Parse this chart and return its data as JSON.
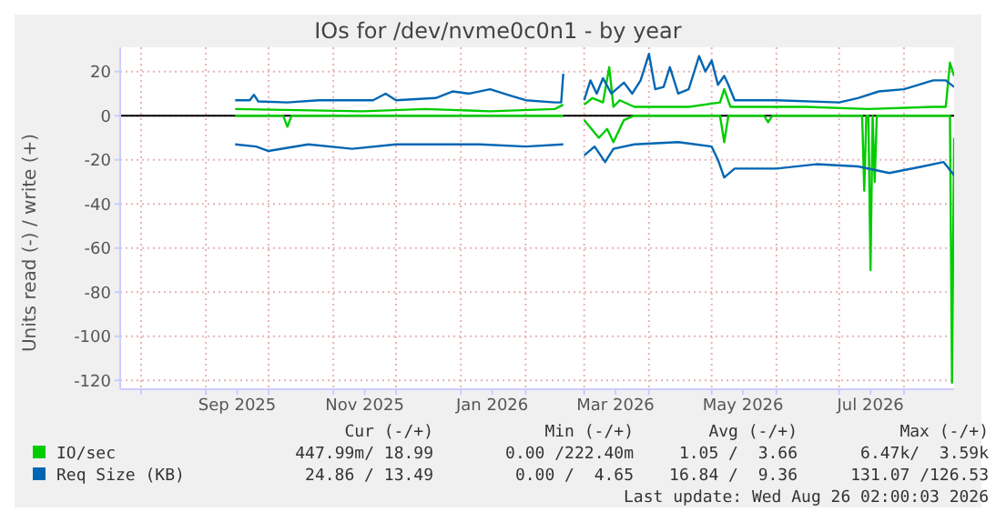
{
  "chart_data": {
    "type": "line",
    "title": "IOs for /dev/nvme0c0n1 - by year",
    "ylabel": "Units read (-) / write (+)",
    "xlim": [
      "2025-07-22",
      "2026-08-25"
    ],
    "xticks": [
      {
        "value": "2025-08-01",
        "label": null
      },
      {
        "value": "2025-09-01",
        "label": null
      },
      {
        "value": "2025-09-16",
        "label": "Sep 2025"
      },
      {
        "value": "2025-10-01",
        "label": null
      },
      {
        "value": "2025-11-01",
        "label": null
      },
      {
        "value": "2025-11-16",
        "label": "Nov 2025"
      },
      {
        "value": "2025-12-01",
        "label": null
      },
      {
        "value": "2026-01-01",
        "label": null
      },
      {
        "value": "2026-01-16",
        "label": "Jan 2026"
      },
      {
        "value": "2026-02-01",
        "label": null
      },
      {
        "value": "2026-03-01",
        "label": null
      },
      {
        "value": "2026-03-16",
        "label": "Mar 2026"
      },
      {
        "value": "2026-04-01",
        "label": null
      },
      {
        "value": "2026-05-01",
        "label": null
      },
      {
        "value": "2026-05-16",
        "label": "May 2026"
      },
      {
        "value": "2026-06-01",
        "label": null
      },
      {
        "value": "2026-07-01",
        "label": null
      },
      {
        "value": "2026-07-16",
        "label": "Jul 2026"
      },
      {
        "value": "2026-08-01",
        "label": null
      }
    ],
    "ylim": [
      -124,
      31
    ],
    "yticks": [
      -120,
      -100,
      -80,
      -60,
      -40,
      -20,
      0,
      20
    ],
    "grid": true,
    "legend": "bottom",
    "marker": "none",
    "line_style": "solid",
    "ref_lines": [
      {
        "axis": "y",
        "value": 0,
        "color": "#000000"
      }
    ],
    "series": [
      {
        "name": "IO/sec",
        "color": "#00cc00",
        "x": [
          "2025-09-15",
          "2025-10-15",
          "2025-11-15",
          "2025-12-15",
          "2026-01-15",
          "2026-02-15",
          "2026-02-19",
          "2026-02-20",
          "2026-03-01",
          "2026-03-05",
          "2026-03-10",
          "2026-03-13",
          "2026-03-15",
          "2026-03-18",
          "2026-03-25",
          "2026-04-20",
          "2026-05-05",
          "2026-05-07",
          "2026-05-10",
          "2026-06-15",
          "2026-07-15",
          "2026-08-15",
          "2026-08-21",
          "2026-08-23",
          "2026-08-25"
        ],
        "values": [
          3,
          2.5,
          2,
          3,
          2,
          3,
          5,
          null,
          5,
          8,
          6,
          22,
          4,
          7,
          4,
          4,
          6,
          12,
          4,
          4,
          3,
          4,
          4,
          24,
          18
        ]
      },
      {
        "color": "#00cc00",
        "x": [
          "2025-09-15",
          "2025-10-08",
          "2025-10-10",
          "2025-10-12",
          "2026-02-19",
          "2026-02-20",
          "2026-03-01",
          "2026-03-08",
          "2026-03-12",
          "2026-03-15",
          "2026-03-20",
          "2026-03-25",
          "2026-05-05",
          "2026-05-07",
          "2026-05-09",
          "2026-05-26",
          "2026-05-28",
          "2026-05-30",
          "2026-07-12",
          "2026-07-13",
          "2026-07-14",
          "2026-07-15",
          "2026-07-16",
          "2026-07-17",
          "2026-07-18",
          "2026-07-19",
          "2026-08-23",
          "2026-08-24",
          "2026-08-25"
        ],
        "values": [
          0,
          0,
          -5,
          0,
          0,
          null,
          -2,
          -10,
          -6,
          -12,
          -2,
          0,
          0,
          -12,
          0,
          0,
          -3,
          0,
          0,
          -34,
          0,
          0,
          -70,
          0,
          -30,
          0,
          0,
          -121,
          -10
        ]
      },
      {
        "name": "Req Size (KB)",
        "color": "#0066b3",
        "x": [
          "2025-09-15",
          "2025-09-22",
          "2025-09-24",
          "2025-09-26",
          "2025-10-10",
          "2025-10-25",
          "2025-11-20",
          "2025-11-26",
          "2025-12-01",
          "2025-12-20",
          "2025-12-28",
          "2026-01-05",
          "2026-01-15",
          "2026-01-25",
          "2026-02-01",
          "2026-02-15",
          "2026-02-18",
          "2026-02-19",
          "2026-02-20",
          "2026-03-01",
          "2026-03-04",
          "2026-03-07",
          "2026-03-10",
          "2026-03-14",
          "2026-03-20",
          "2026-03-24",
          "2026-03-28",
          "2026-04-01",
          "2026-04-04",
          "2026-04-08",
          "2026-04-11",
          "2026-04-15",
          "2026-04-20",
          "2026-04-25",
          "2026-04-28",
          "2026-05-01",
          "2026-05-04",
          "2026-05-07",
          "2026-05-09",
          "2026-05-12",
          "2026-06-01",
          "2026-07-01",
          "2026-07-10",
          "2026-07-20",
          "2026-08-01",
          "2026-08-15",
          "2026-08-21",
          "2026-08-25"
        ],
        "values": [
          7,
          7,
          9.5,
          6.5,
          6,
          7,
          7,
          10,
          7,
          8,
          11,
          10,
          12,
          9,
          7,
          6,
          6,
          19,
          null,
          7,
          16,
          10,
          17,
          10,
          15,
          10,
          16,
          28,
          12,
          13,
          22,
          10,
          12,
          27,
          20,
          25,
          14,
          18,
          14,
          7,
          7,
          6,
          8,
          11,
          12,
          16,
          16,
          13
        ]
      },
      {
        "color": "#0066b3",
        "x": [
          "2025-09-15",
          "2025-09-25",
          "2025-10-01",
          "2025-10-20",
          "2025-11-10",
          "2025-12-01",
          "2026-01-10",
          "2026-02-01",
          "2026-02-19",
          "2026-02-20",
          "2026-03-01",
          "2026-03-06",
          "2026-03-11",
          "2026-03-15",
          "2026-03-25",
          "2026-04-15",
          "2026-05-01",
          "2026-05-04",
          "2026-05-07",
          "2026-05-12",
          "2026-06-01",
          "2026-06-20",
          "2026-07-10",
          "2026-07-25",
          "2026-08-10",
          "2026-08-20",
          "2026-08-25"
        ],
        "values": [
          -13,
          -14,
          -16,
          -13,
          -15,
          -13,
          -13,
          -14,
          -13,
          null,
          -18,
          -14,
          -21,
          -15,
          -13,
          -12,
          -14,
          -20,
          -28,
          -24,
          -24,
          -22,
          -23,
          -26,
          -23,
          -21,
          -27
        ]
      }
    ],
    "annotations": [
      "Cur (-/+)",
      "Min (-/+)",
      "Avg (-/+)",
      "Max (-/+)",
      "447.99m/ 18.99",
      "0.00 /222.40m",
      "1.05 /  3.66",
      "6.47k/  3.59k",
      "24.86 / 13.49",
      "0.00 /  4.65",
      "16.84 /  9.36",
      "131.07 /126.53",
      "Last update: Wed Aug 26 02:00:03 2026"
    ]
  }
}
